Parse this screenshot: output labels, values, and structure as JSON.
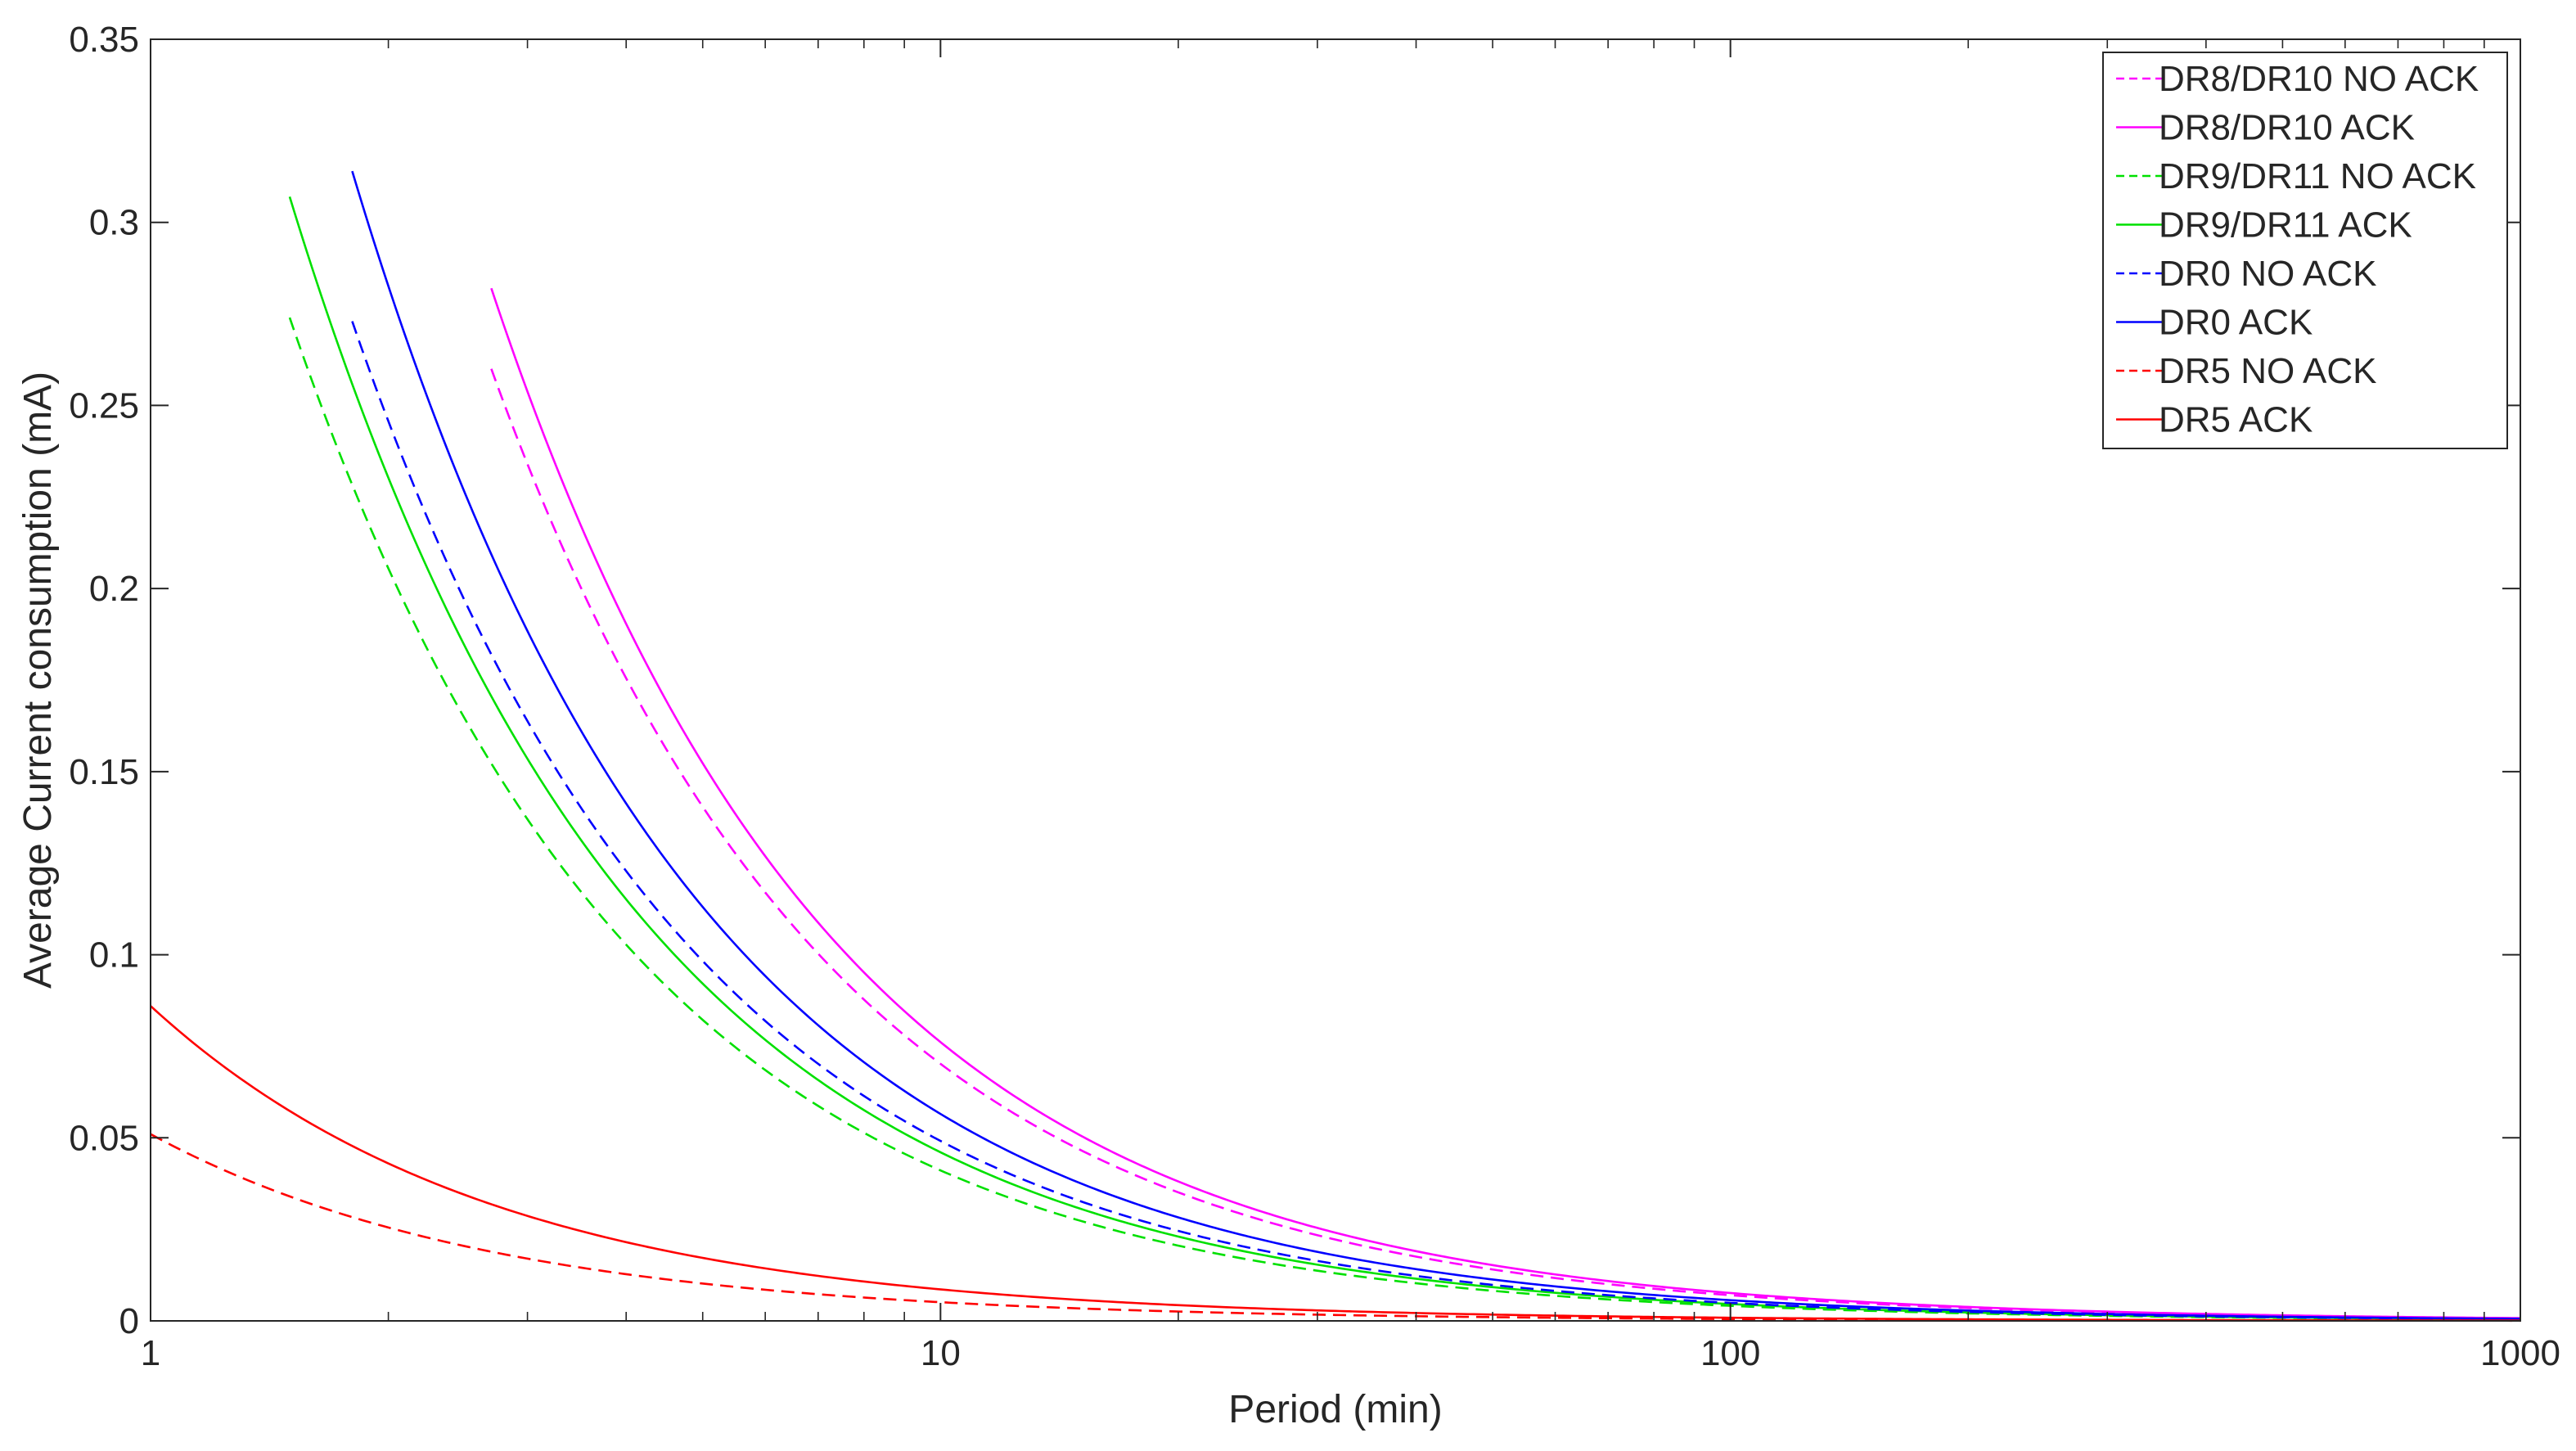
{
  "chart_data": {
    "type": "line",
    "title": "",
    "xlabel": "Period (min)",
    "ylabel": "Average Current consumption (mA)",
    "xscale": "log",
    "xlim": [
      1,
      1000
    ],
    "ylim": [
      0,
      0.35
    ],
    "xticks": [
      1,
      10,
      100,
      1000
    ],
    "xtick_labels": [
      "1",
      "10",
      "100",
      "1000"
    ],
    "yticks": [
      0,
      0.05,
      0.1,
      0.15,
      0.2,
      0.25,
      0.3,
      0.35
    ],
    "ytick_labels": [
      "0",
      "0.05",
      "0.1",
      "0.15",
      "0.2",
      "0.25",
      "0.3",
      "0.35"
    ],
    "grid": false,
    "legend_position": "top-right",
    "series": [
      {
        "name": "DR8/DR10 NO ACK",
        "color": "#ff00ff",
        "dash": "dashed",
        "x_start": 2.7,
        "x_end": 1000,
        "y_at_start": 0.26,
        "exponent": 1.0
      },
      {
        "name": "DR8/DR10 ACK",
        "color": "#ff00ff",
        "dash": "solid",
        "x_start": 2.7,
        "x_end": 1000,
        "y_at_start": 0.282,
        "exponent": 1.0
      },
      {
        "name": "DR9/DR11 NO ACK",
        "color": "#00e000",
        "dash": "dashed",
        "x_start": 1.5,
        "x_end": 1000,
        "y_at_start": 0.274,
        "exponent": 1.0
      },
      {
        "name": "DR9/DR11 ACK",
        "color": "#00e000",
        "dash": "solid",
        "x_start": 1.5,
        "x_end": 1000,
        "y_at_start": 0.307,
        "exponent": 1.0
      },
      {
        "name": "DR0 NO ACK",
        "color": "#0000ff",
        "dash": "dashed",
        "x_start": 1.8,
        "x_end": 1000,
        "y_at_start": 0.273,
        "exponent": 1.0
      },
      {
        "name": "DR0 ACK",
        "color": "#0000ff",
        "dash": "solid",
        "x_start": 1.8,
        "x_end": 1000,
        "y_at_start": 0.314,
        "exponent": 1.0
      },
      {
        "name": "DR5 NO ACK",
        "color": "#ff0000",
        "dash": "dashed",
        "x_start": 1,
        "x_end": 1000,
        "y_at_start": 0.051,
        "exponent": 1.0
      },
      {
        "name": "DR5 ACK",
        "color": "#ff0000",
        "dash": "solid",
        "x_start": 1,
        "x_end": 1000,
        "y_at_start": 0.086,
        "exponent": 1.0
      }
    ]
  }
}
